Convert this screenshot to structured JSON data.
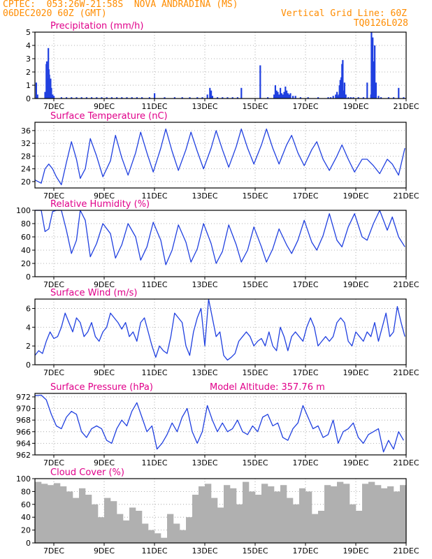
{
  "header": {
    "left_line1": "CPTEC:  053:26W-21:58S  NOVA ANDRADINA (MS)",
    "left_line2": "06DEC2020 60Z (GMT)",
    "right_line1": "Vertical Grid Line: 60Z",
    "right_line2": "TQ0126L028"
  },
  "colors": {
    "header": "#ff8c00",
    "panel_title": "#e0008a",
    "series_line": "#2040e0",
    "cloud_fill": "#b0b0b0",
    "grid": "#999999"
  },
  "chart_data": [
    {
      "type": "bar",
      "title": "Precipitation (mm/h)",
      "ylim": [
        0,
        5
      ],
      "yticks": [
        0,
        1,
        2,
        3,
        4,
        5
      ],
      "x_range_days": [
        6.25,
        21.0
      ],
      "xtick_labels": [
        "7DEC",
        "9DEC",
        "11DEC",
        "13DEC",
        "15DEC",
        "17DEC",
        "19DEC",
        "21DEC"
      ],
      "xtick_days": [
        7,
        9,
        11,
        13,
        15,
        17,
        19,
        21
      ],
      "x": [
        6.3,
        6.35,
        6.65,
        6.7,
        6.72,
        6.75,
        6.78,
        6.8,
        6.82,
        6.85,
        6.87,
        6.9,
        6.95,
        7.0,
        7.3,
        7.5,
        7.7,
        7.9,
        8.1,
        8.3,
        8.5,
        8.7,
        8.9,
        9.1,
        9.3,
        9.5,
        9.7,
        9.9,
        10.1,
        10.3,
        10.5,
        10.8,
        11.0,
        11.4,
        11.8,
        12.1,
        12.4,
        12.7,
        12.9,
        13.1,
        13.2,
        13.25,
        13.3,
        13.5,
        13.7,
        13.9,
        14.1,
        14.3,
        14.45,
        15.2,
        15.5,
        15.75,
        15.8,
        15.85,
        15.9,
        15.95,
        16.0,
        16.05,
        16.1,
        16.15,
        16.2,
        16.25,
        16.3,
        16.35,
        16.4,
        16.5,
        16.6,
        16.8,
        17.1,
        17.5,
        17.9,
        18.0,
        18.1,
        18.2,
        18.25,
        18.3,
        18.32,
        18.35,
        18.38,
        18.4,
        18.42,
        18.45,
        18.48,
        18.5,
        18.55,
        18.6,
        18.7,
        18.8,
        18.9,
        19.1,
        19.3,
        19.45,
        19.6,
        19.62,
        19.65,
        19.67,
        19.7,
        19.72,
        19.75,
        19.8,
        19.9,
        20.0,
        20.3,
        20.5,
        20.7,
        20.9
      ],
      "values": [
        1.2,
        0.3,
        0.5,
        2.6,
        2.8,
        1.5,
        3.8,
        2.2,
        1.8,
        1.0,
        1.5,
        0.8,
        0.3,
        0.2,
        0.1,
        0.1,
        0.1,
        0.1,
        0.1,
        0.1,
        0.1,
        0.1,
        0.1,
        0.1,
        0.1,
        0.1,
        0.1,
        0.1,
        0.1,
        0.1,
        0.1,
        0.1,
        0.4,
        0.1,
        0.1,
        0.1,
        0.1,
        0.1,
        0.1,
        0.3,
        0.8,
        0.6,
        0.2,
        0.1,
        0.1,
        0.1,
        0.1,
        0.1,
        0.8,
        2.5,
        0.1,
        0.3,
        1.0,
        0.6,
        0.5,
        0.3,
        0.8,
        0.4,
        0.3,
        0.5,
        0.9,
        0.6,
        0.4,
        0.3,
        0.4,
        0.2,
        0.2,
        0.1,
        0.1,
        0.1,
        0.1,
        0.1,
        0.2,
        0.3,
        0.5,
        0.2,
        0.3,
        1.0,
        1.4,
        0.8,
        1.6,
        2.6,
        2.9,
        0.6,
        1.2,
        0.3,
        0.1,
        0.1,
        0.1,
        0.1,
        0.1,
        1.2,
        0.3,
        5.0,
        3.0,
        4.6,
        1.3,
        2.8,
        4.0,
        1.2,
        0.2,
        0.1,
        0.1,
        0.1,
        0.8,
        0.1
      ]
    },
    {
      "type": "line",
      "title": "Surface Temperature (nC)",
      "ylim": [
        18,
        38.6
      ],
      "yticks": [
        20,
        24,
        28,
        32,
        36
      ],
      "x_range_days": [
        6.25,
        21.0
      ],
      "xtick_labels": [
        "7DEC",
        "9DEC",
        "11DEC",
        "13DEC",
        "15DEC",
        "17DEC",
        "19DEC",
        "21DEC"
      ],
      "xtick_days": [
        7,
        9,
        11,
        13,
        15,
        17,
        19,
        21
      ],
      "x": [
        6.25,
        6.5,
        6.65,
        6.8,
        6.95,
        7.1,
        7.3,
        7.5,
        7.7,
        7.9,
        8.05,
        8.25,
        8.45,
        8.7,
        8.95,
        9.25,
        9.45,
        9.7,
        9.95,
        10.25,
        10.45,
        10.7,
        10.95,
        11.25,
        11.45,
        11.7,
        11.95,
        12.25,
        12.45,
        12.7,
        12.95,
        13.25,
        13.45,
        13.7,
        13.95,
        14.25,
        14.45,
        14.7,
        14.95,
        15.25,
        15.45,
        15.7,
        15.95,
        16.25,
        16.45,
        16.7,
        16.95,
        17.25,
        17.45,
        17.7,
        17.95,
        18.25,
        18.45,
        18.7,
        18.95,
        19.25,
        19.45,
        19.7,
        19.95,
        20.25,
        20.45,
        20.7,
        20.95
      ],
      "values": [
        20.5,
        19.5,
        24.0,
        25.5,
        24.0,
        21.5,
        19.0,
        26.0,
        32.5,
        27.0,
        21.0,
        24.0,
        33.5,
        28.0,
        21.5,
        26.5,
        34.5,
        27.5,
        22.0,
        29.0,
        35.5,
        29.0,
        23.0,
        30.5,
        36.5,
        29.5,
        23.5,
        30.0,
        35.5,
        29.5,
        24.0,
        30.5,
        36.0,
        30.0,
        24.5,
        31.0,
        36.5,
        30.5,
        25.5,
        31.5,
        36.5,
        30.5,
        25.5,
        31.5,
        34.5,
        29.0,
        25.0,
        30.0,
        32.5,
        27.0,
        23.5,
        28.0,
        31.5,
        27.0,
        23.0,
        27.0,
        27.0,
        25.0,
        22.5,
        27.0,
        25.5,
        22.0,
        30.5
      ]
    },
    {
      "type": "line",
      "title": "Relative Humidity (%)",
      "ylim": [
        0,
        100
      ],
      "yticks": [
        0,
        20,
        40,
        60,
        80,
        100
      ],
      "x_range_days": [
        6.25,
        21.0
      ],
      "xtick_labels": [
        "7DEC",
        "9DEC",
        "11DEC",
        "13DEC",
        "15DEC",
        "17DEC",
        "19DEC",
        "21DEC"
      ],
      "xtick_days": [
        7,
        9,
        11,
        13,
        15,
        17,
        19,
        21
      ],
      "x": [
        6.25,
        6.5,
        6.65,
        6.8,
        6.95,
        7.1,
        7.3,
        7.5,
        7.7,
        7.9,
        8.05,
        8.25,
        8.45,
        8.7,
        8.95,
        9.25,
        9.45,
        9.7,
        9.95,
        10.25,
        10.45,
        10.7,
        10.95,
        11.25,
        11.45,
        11.7,
        11.95,
        12.25,
        12.45,
        12.7,
        12.95,
        13.25,
        13.45,
        13.7,
        13.95,
        14.25,
        14.45,
        14.7,
        14.95,
        15.25,
        15.45,
        15.7,
        15.95,
        16.25,
        16.45,
        16.7,
        16.95,
        17.25,
        17.45,
        17.7,
        17.95,
        18.25,
        18.45,
        18.7,
        18.95,
        19.25,
        19.45,
        19.7,
        19.95,
        20.25,
        20.45,
        20.7,
        20.95
      ],
      "values": [
        100,
        100,
        68,
        72,
        98,
        100,
        100,
        70,
        35,
        55,
        100,
        85,
        30,
        50,
        80,
        65,
        28,
        48,
        80,
        60,
        25,
        45,
        82,
        55,
        18,
        40,
        78,
        52,
        22,
        42,
        80,
        50,
        20,
        38,
        78,
        48,
        22,
        40,
        75,
        45,
        22,
        42,
        72,
        48,
        35,
        55,
        85,
        52,
        40,
        62,
        95,
        55,
        45,
        75,
        95,
        60,
        55,
        80,
        100,
        70,
        90,
        60,
        45
      ]
    },
    {
      "type": "line",
      "title": "Surface Wind (m/s)",
      "ylim": [
        0,
        7
      ],
      "yticks": [
        0,
        2,
        4,
        6
      ],
      "x_range_days": [
        6.25,
        21.0
      ],
      "xtick_labels": [
        "7DEC",
        "9DEC",
        "11DEC",
        "13DEC",
        "15DEC",
        "17DEC",
        "19DEC",
        "21DEC"
      ],
      "xtick_days": [
        7,
        9,
        11,
        13,
        15,
        17,
        19,
        21
      ],
      "x": [
        6.25,
        6.4,
        6.55,
        6.7,
        6.85,
        7.0,
        7.15,
        7.3,
        7.45,
        7.6,
        7.75,
        7.9,
        8.05,
        8.2,
        8.35,
        8.5,
        8.65,
        8.8,
        8.95,
        9.1,
        9.25,
        9.4,
        9.55,
        9.7,
        9.85,
        10.0,
        10.15,
        10.3,
        10.45,
        10.6,
        10.75,
        10.9,
        11.05,
        11.2,
        11.35,
        11.5,
        11.65,
        11.8,
        11.95,
        12.1,
        12.25,
        12.4,
        12.55,
        12.7,
        12.85,
        13.0,
        13.15,
        13.3,
        13.45,
        13.6,
        13.75,
        13.9,
        14.05,
        14.2,
        14.35,
        14.5,
        14.65,
        14.8,
        14.95,
        15.1,
        15.25,
        15.4,
        15.55,
        15.7,
        15.85,
        16.0,
        16.15,
        16.3,
        16.45,
        16.6,
        16.75,
        16.9,
        17.05,
        17.2,
        17.35,
        17.5,
        17.65,
        17.8,
        17.95,
        18.1,
        18.25,
        18.4,
        18.55,
        18.7,
        18.85,
        19.0,
        19.15,
        19.3,
        19.45,
        19.6,
        19.75,
        19.9,
        20.05,
        20.2,
        20.35,
        20.5,
        20.65,
        20.8,
        20.95
      ],
      "values": [
        1.0,
        1.5,
        1.2,
        2.5,
        3.5,
        2.8,
        3.0,
        4.0,
        5.5,
        4.5,
        3.5,
        5.0,
        4.5,
        3.0,
        3.5,
        4.5,
        3.0,
        2.5,
        3.5,
        4.0,
        5.5,
        5.0,
        4.5,
        3.8,
        4.5,
        3.0,
        3.5,
        2.5,
        4.5,
        5.0,
        3.5,
        2.0,
        0.8,
        2.0,
        1.5,
        1.2,
        3.0,
        5.5,
        5.0,
        4.5,
        2.0,
        1.0,
        3.5,
        5.0,
        6.0,
        2.0,
        7.0,
        5.0,
        3.0,
        3.5,
        1.0,
        0.5,
        0.8,
        1.2,
        2.5,
        3.0,
        3.5,
        3.0,
        2.0,
        2.5,
        2.8,
        2.0,
        3.5,
        2.0,
        1.5,
        4.0,
        3.0,
        1.5,
        3.0,
        3.5,
        3.0,
        2.5,
        4.0,
        5.0,
        4.0,
        2.0,
        2.5,
        3.0,
        2.5,
        3.0,
        4.5,
        5.0,
        4.5,
        2.5,
        2.0,
        3.5,
        3.0,
        2.5,
        3.5,
        3.0,
        4.5,
        2.5,
        4.0,
        5.5,
        3.0,
        3.5,
        6.2,
        4.5,
        3.0
      ]
    },
    {
      "type": "line",
      "title": "Surface Pressure (hPa)",
      "annotation": "Model Altitude: 357.76 m",
      "ylim": [
        962,
        972.6
      ],
      "yticks": [
        962,
        964,
        966,
        968,
        970,
        972
      ],
      "x_range_days": [
        6.25,
        21.0
      ],
      "xtick_labels": [
        "7DEC",
        "9DEC",
        "11DEC",
        "13DEC",
        "15DEC",
        "17DEC",
        "19DEC",
        "21DEC"
      ],
      "xtick_days": [
        7,
        9,
        11,
        13,
        15,
        17,
        19,
        21
      ],
      "x": [
        6.25,
        6.5,
        6.7,
        6.9,
        7.1,
        7.3,
        7.5,
        7.7,
        7.9,
        8.1,
        8.3,
        8.5,
        8.7,
        8.9,
        9.1,
        9.3,
        9.5,
        9.7,
        9.9,
        10.1,
        10.3,
        10.5,
        10.7,
        10.9,
        11.1,
        11.3,
        11.5,
        11.7,
        11.9,
        12.1,
        12.3,
        12.5,
        12.7,
        12.9,
        13.1,
        13.3,
        13.5,
        13.7,
        13.9,
        14.1,
        14.3,
        14.5,
        14.7,
        14.9,
        15.1,
        15.3,
        15.5,
        15.7,
        15.9,
        16.1,
        16.3,
        16.5,
        16.7,
        16.9,
        17.1,
        17.3,
        17.5,
        17.7,
        17.9,
        18.1,
        18.3,
        18.5,
        18.7,
        18.9,
        19.1,
        19.3,
        19.5,
        19.7,
        19.9,
        20.1,
        20.3,
        20.5,
        20.7,
        20.9
      ],
      "values": [
        972.2,
        972.3,
        971.5,
        969.0,
        967.0,
        966.5,
        968.5,
        969.5,
        969.0,
        966.0,
        965.0,
        966.5,
        967.0,
        966.5,
        964.5,
        964.0,
        966.5,
        968.0,
        967.0,
        969.5,
        971.0,
        968.5,
        966.0,
        967.0,
        963.0,
        964.0,
        965.5,
        967.5,
        966.0,
        968.5,
        970.0,
        966.0,
        964.0,
        966.0,
        970.5,
        968.0,
        966.0,
        967.5,
        966.0,
        966.5,
        968.0,
        966.0,
        965.5,
        967.0,
        966.0,
        968.5,
        969.0,
        967.0,
        967.5,
        965.0,
        964.5,
        966.5,
        967.5,
        970.5,
        968.5,
        966.5,
        967.0,
        965.0,
        965.5,
        968.0,
        964.0,
        966.0,
        966.5,
        967.5,
        965.0,
        964.0,
        965.5,
        966.0,
        966.5,
        962.5,
        964.5,
        963.0,
        966.0,
        964.5
      ]
    },
    {
      "type": "area",
      "title": "Cloud Cover (%)",
      "ylim": [
        0,
        100
      ],
      "yticks": [
        0,
        20,
        40,
        60,
        80,
        100
      ],
      "x_range_days": [
        6.25,
        21.0
      ],
      "xtick_labels": [
        "7DEC",
        "9DEC",
        "11DEC",
        "13DEC",
        "15DEC",
        "17DEC",
        "19DEC",
        "21DEC"
      ],
      "xtick_days": [
        7,
        9,
        11,
        13,
        15,
        17,
        19,
        21
      ],
      "x": [
        6.25,
        6.5,
        6.75,
        7.0,
        7.25,
        7.5,
        7.75,
        8.0,
        8.25,
        8.5,
        8.75,
        9.0,
        9.25,
        9.5,
        9.75,
        10.0,
        10.25,
        10.5,
        10.75,
        11.0,
        11.25,
        11.5,
        11.75,
        12.0,
        12.25,
        12.5,
        12.75,
        13.0,
        13.25,
        13.5,
        13.75,
        14.0,
        14.25,
        14.5,
        14.75,
        15.0,
        15.25,
        15.5,
        15.75,
        16.0,
        16.25,
        16.5,
        16.75,
        17.0,
        17.25,
        17.5,
        17.75,
        18.0,
        18.25,
        18.5,
        18.75,
        19.0,
        19.25,
        19.5,
        19.75,
        20.0,
        20.25,
        20.5,
        20.75,
        21.0
      ],
      "values": [
        95,
        92,
        90,
        93,
        88,
        80,
        70,
        85,
        75,
        60,
        40,
        70,
        65,
        45,
        35,
        55,
        50,
        30,
        20,
        15,
        8,
        45,
        30,
        20,
        40,
        75,
        88,
        92,
        70,
        55,
        90,
        85,
        60,
        95,
        80,
        75,
        92,
        88,
        80,
        90,
        70,
        60,
        85,
        80,
        45,
        50,
        90,
        88,
        95,
        92,
        60,
        50,
        92,
        95,
        90,
        85,
        88,
        80,
        90,
        88
      ]
    }
  ]
}
